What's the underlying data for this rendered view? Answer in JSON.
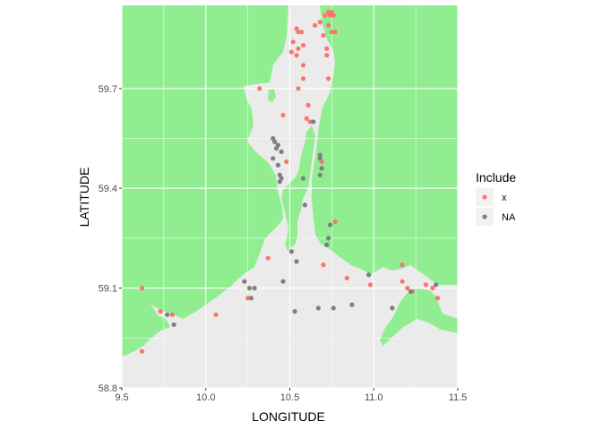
{
  "chart_data": {
    "type": "scatter",
    "title": "",
    "xlabel": "LONGITUDE",
    "ylabel": "LATITUDE",
    "xlim": [
      9.5,
      11.5
    ],
    "ylim": [
      58.8,
      59.95
    ],
    "x_ticks": [
      "9.5",
      "10.0",
      "10.5",
      "11.0",
      "11.5"
    ],
    "y_ticks": [
      "58.8",
      "59.1",
      "59.4",
      "59.7"
    ],
    "grid": true,
    "panel_background": "#EBEBEB",
    "gridline_color": "#FFFFFF",
    "land_color": "#90EE90",
    "legend": {
      "title": "Include",
      "position": "right",
      "entries": [
        {
          "label": "x",
          "color": "#F8766D"
        },
        {
          "label": "NA",
          "color": "#7F7F7F"
        }
      ]
    },
    "series": [
      {
        "name": "x",
        "color": "#F8766D",
        "points": [
          [
            10.54,
            59.88
          ],
          [
            10.55,
            59.87
          ],
          [
            10.57,
            59.87
          ],
          [
            10.52,
            59.84
          ],
          [
            10.51,
            59.81
          ],
          [
            10.55,
            59.82
          ],
          [
            10.58,
            59.83
          ],
          [
            10.65,
            59.89
          ],
          [
            10.68,
            59.9
          ],
          [
            10.71,
            59.92
          ],
          [
            10.73,
            59.93
          ],
          [
            10.74,
            59.92
          ],
          [
            10.75,
            59.93
          ],
          [
            10.76,
            59.92
          ],
          [
            10.73,
            59.89
          ],
          [
            10.75,
            59.87
          ],
          [
            10.77,
            59.87
          ],
          [
            10.7,
            59.86
          ],
          [
            10.72,
            59.82
          ],
          [
            10.54,
            59.8
          ],
          [
            10.58,
            59.77
          ],
          [
            10.58,
            59.73
          ],
          [
            10.72,
            59.8
          ],
          [
            10.73,
            59.73
          ],
          [
            10.55,
            59.7
          ],
          [
            10.61,
            59.65
          ],
          [
            10.6,
            59.61
          ],
          [
            10.62,
            59.6
          ],
          [
            10.32,
            59.7
          ],
          [
            10.46,
            59.62
          ],
          [
            10.48,
            59.48
          ],
          [
            10.69,
            59.48
          ],
          [
            10.69,
            59.46
          ],
          [
            10.77,
            59.3
          ],
          [
            10.37,
            59.19
          ],
          [
            10.7,
            59.17
          ],
          [
            10.84,
            59.13
          ],
          [
            10.98,
            59.11
          ],
          [
            11.17,
            59.17
          ],
          [
            11.2,
            59.1
          ],
          [
            11.23,
            59.09
          ],
          [
            11.31,
            59.11
          ],
          [
            11.35,
            59.1
          ],
          [
            11.38,
            59.07
          ],
          [
            11.17,
            59.12
          ],
          [
            9.62,
            59.1
          ],
          [
            9.73,
            59.03
          ],
          [
            9.8,
            59.02
          ],
          [
            10.06,
            59.02
          ],
          [
            10.25,
            59.07
          ],
          [
            9.62,
            58.91
          ]
        ]
      },
      {
        "name": "NA",
        "color": "#7F7F7F",
        "points": [
          [
            10.64,
            59.6
          ],
          [
            10.4,
            59.55
          ],
          [
            10.41,
            59.54
          ],
          [
            10.43,
            59.53
          ],
          [
            10.42,
            59.52
          ],
          [
            10.45,
            59.51
          ],
          [
            10.4,
            59.49
          ],
          [
            10.43,
            59.47
          ],
          [
            10.44,
            59.44
          ],
          [
            10.45,
            59.43
          ],
          [
            10.44,
            59.42
          ],
          [
            10.58,
            59.43
          ],
          [
            10.68,
            59.5
          ],
          [
            10.68,
            59.49
          ],
          [
            10.69,
            59.46
          ],
          [
            10.68,
            59.44
          ],
          [
            10.59,
            59.35
          ],
          [
            10.74,
            59.29
          ],
          [
            10.73,
            59.25
          ],
          [
            10.72,
            59.23
          ],
          [
            10.51,
            59.21
          ],
          [
            10.54,
            59.18
          ],
          [
            10.46,
            59.12
          ],
          [
            10.23,
            59.12
          ],
          [
            10.26,
            59.1
          ],
          [
            10.29,
            59.1
          ],
          [
            10.27,
            59.07
          ],
          [
            10.53,
            59.03
          ],
          [
            10.67,
            59.04
          ],
          [
            10.76,
            59.04
          ],
          [
            10.87,
            59.05
          ],
          [
            10.97,
            59.14
          ],
          [
            11.11,
            59.04
          ],
          [
            11.22,
            59.09
          ],
          [
            11.37,
            59.11
          ],
          [
            9.77,
            59.02
          ],
          [
            9.81,
            58.99
          ]
        ]
      }
    ]
  }
}
